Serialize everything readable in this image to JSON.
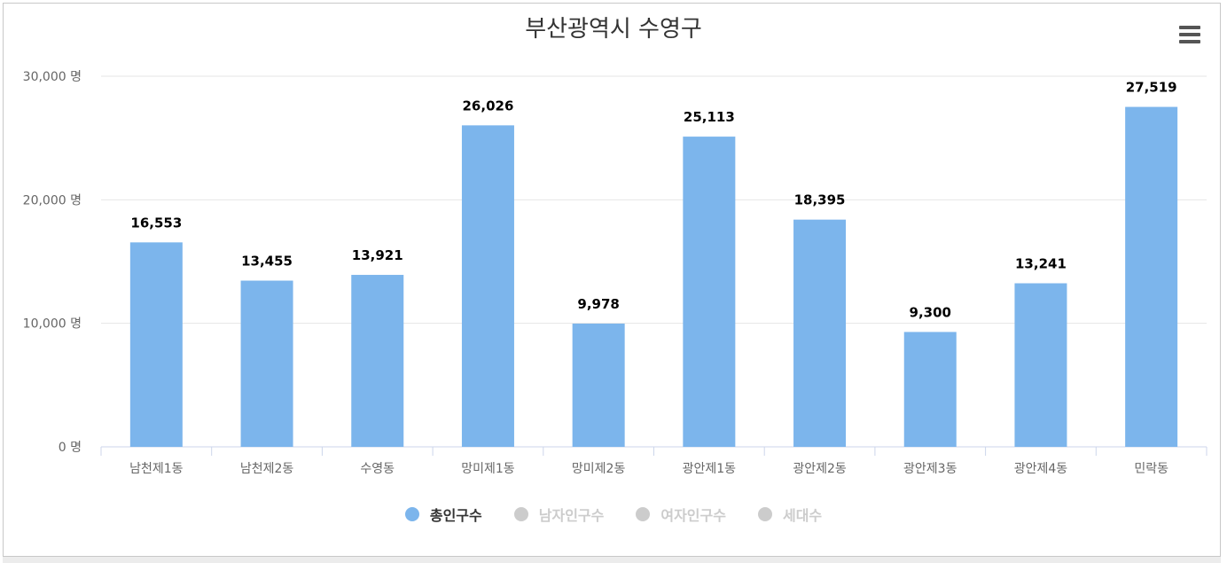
{
  "chart_data": {
    "type": "bar",
    "title": "부산광역시 수영구",
    "categories": [
      "남천제1동",
      "남천제2동",
      "수영동",
      "망미제1동",
      "망미제2동",
      "광안제1동",
      "광안제2동",
      "광안제3동",
      "광안제4동",
      "민락동"
    ],
    "series": [
      {
        "name": "총인구수",
        "values": [
          16553,
          13455,
          13921,
          26026,
          9978,
          25113,
          18395,
          9300,
          13241,
          27519
        ],
        "color": "#7cb5ec"
      }
    ],
    "data_labels": [
      "16,553",
      "13,455",
      "13,921",
      "26,026",
      "9,978",
      "25,113",
      "18,395",
      "9,300",
      "13,241",
      "27,519"
    ],
    "ylim": [
      0,
      30000
    ],
    "yticks": [
      0,
      10000,
      20000,
      30000
    ],
    "ytick_labels": [
      "0 명",
      "10,000 명",
      "20,000 명",
      "30,000 명"
    ],
    "grid": true,
    "legend_position": "bottom-center"
  },
  "legend": [
    {
      "label": "총인구수",
      "active": true,
      "color": "#7cb5ec"
    },
    {
      "label": "남자인구수",
      "active": false,
      "color": "#cccccc"
    },
    {
      "label": "여자인구수",
      "active": false,
      "color": "#cccccc"
    },
    {
      "label": "세대수",
      "active": false,
      "color": "#cccccc"
    }
  ],
  "menu": {
    "icon": "hamburger-menu-icon"
  }
}
